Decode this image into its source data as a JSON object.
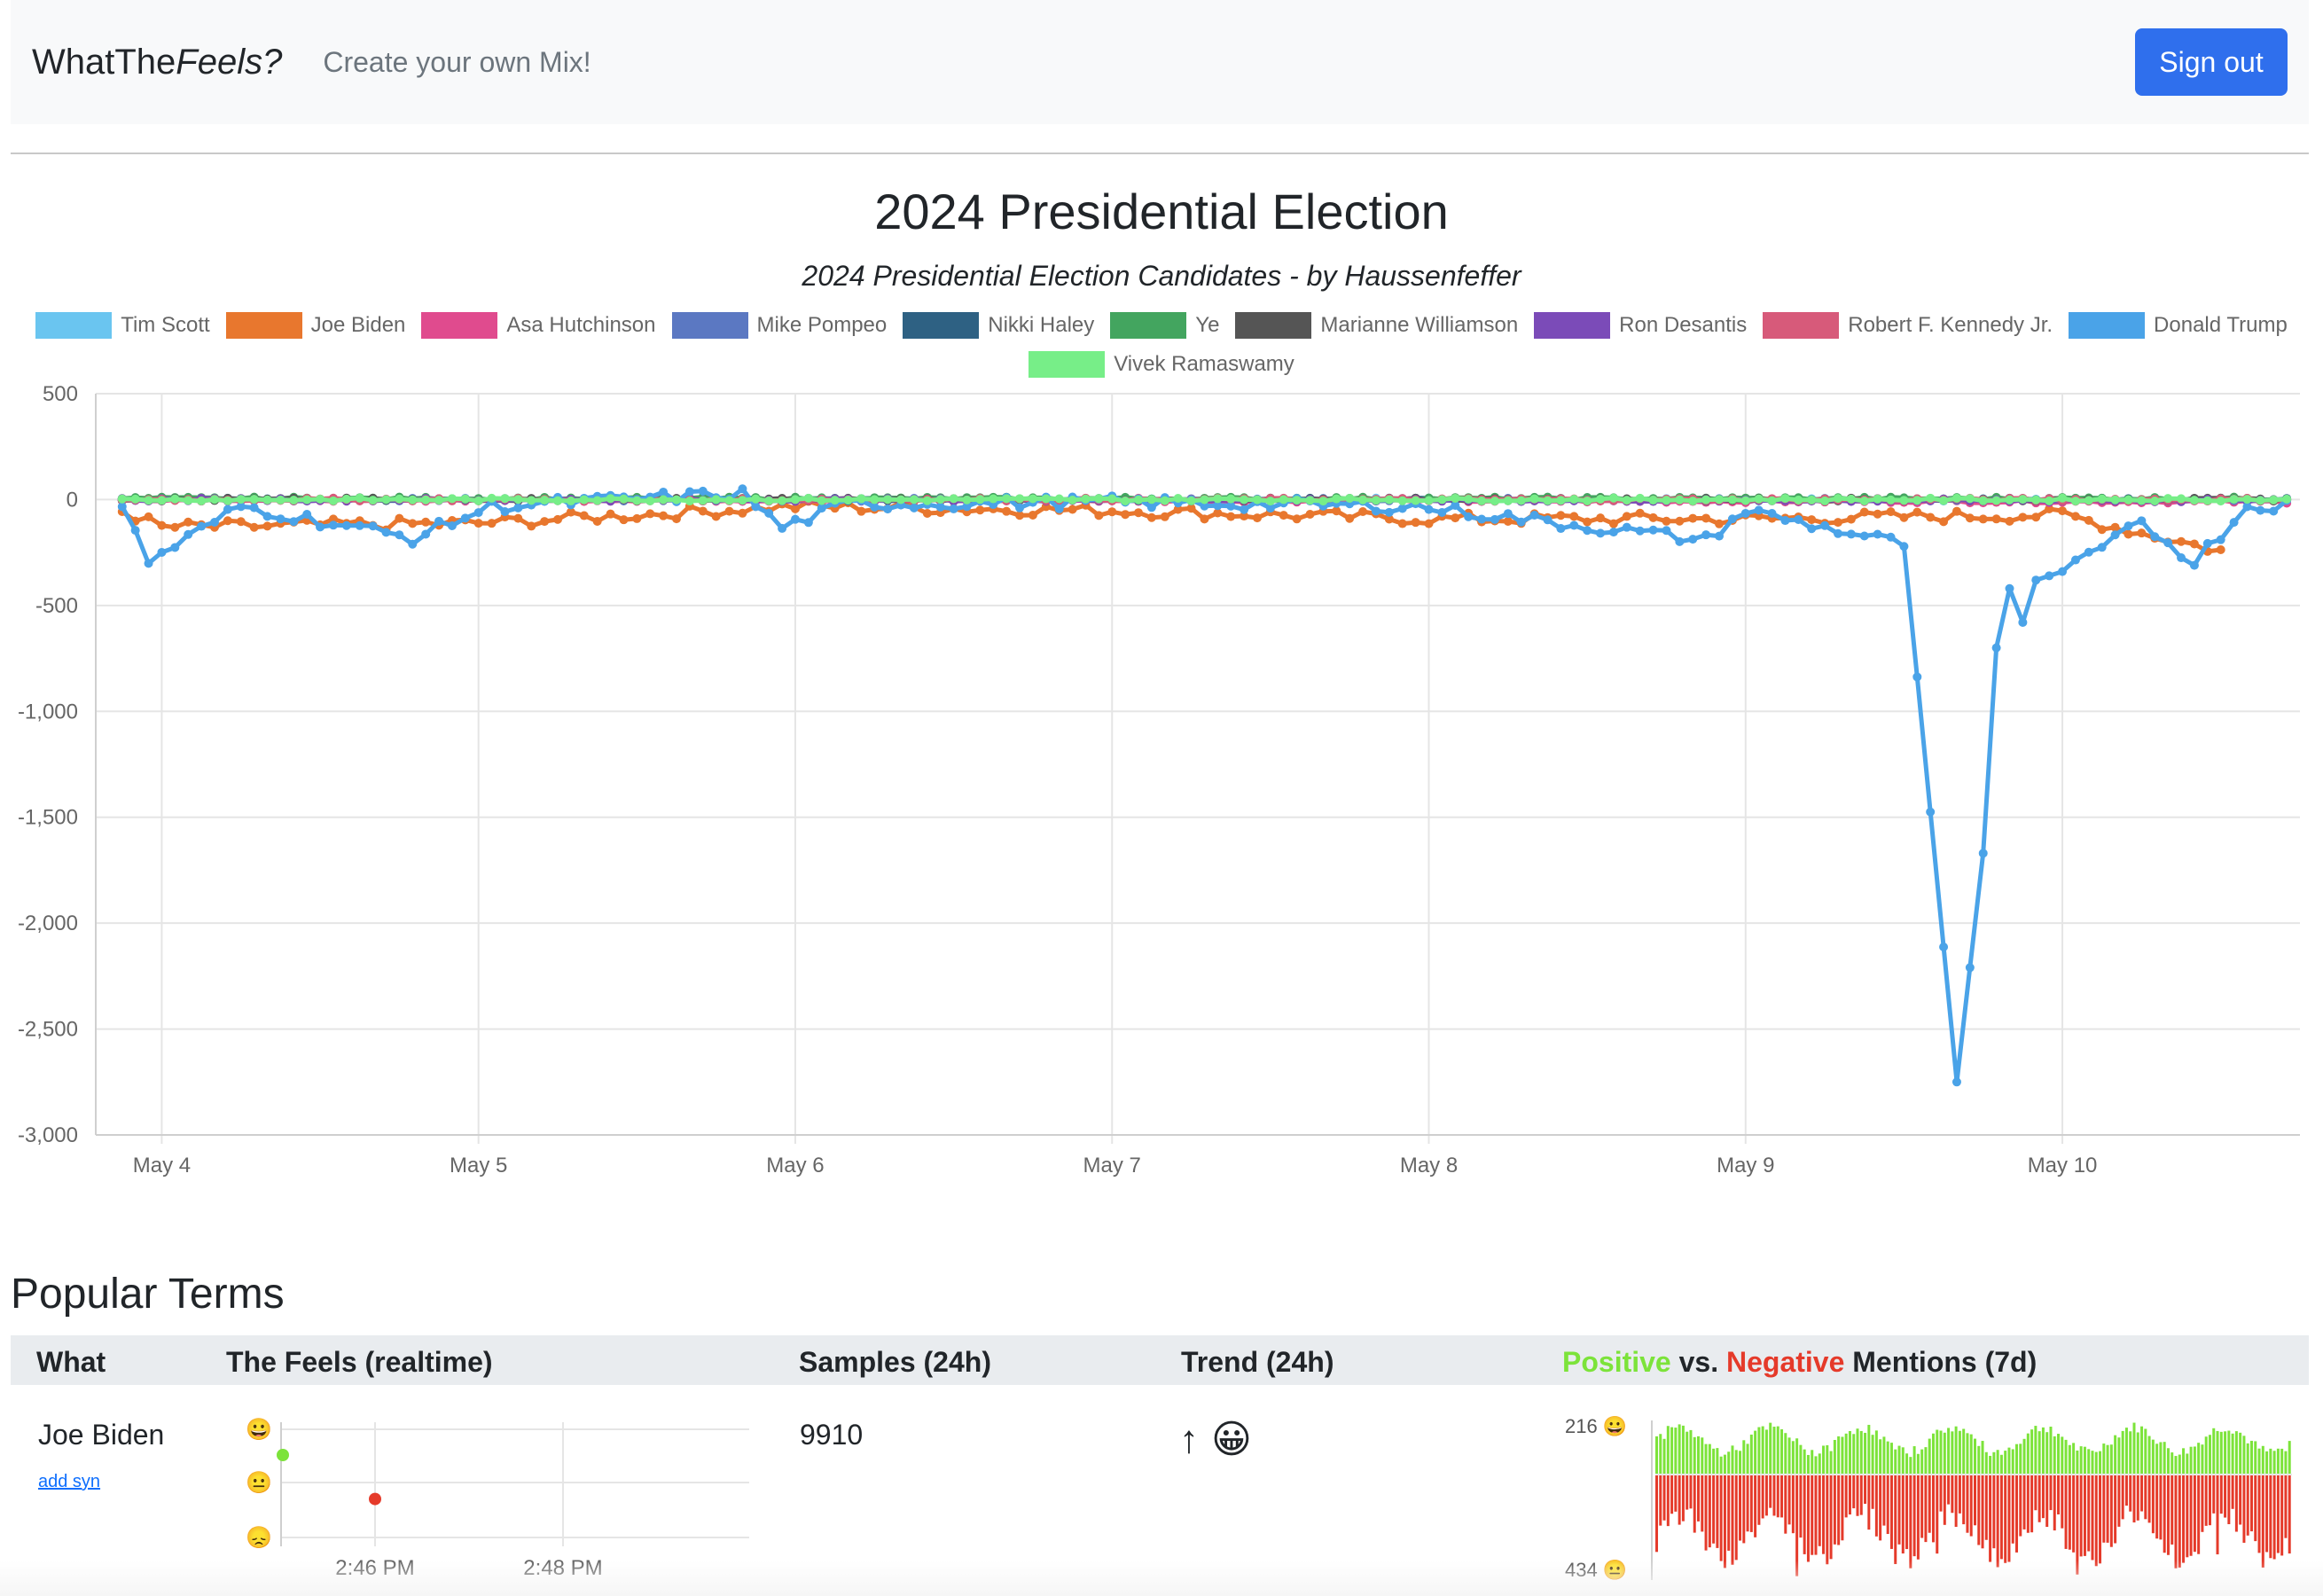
{
  "navbar": {
    "brand_prefix": "WhatThe",
    "brand_italic": "Feels?",
    "nav_link": "Create your own Mix!",
    "signout_label": "Sign out"
  },
  "colors": {
    "accent_button": "#2f6fed",
    "positive": "#7ce33a",
    "negative": "#e53a2a"
  },
  "chart_data": {
    "type": "line",
    "title": "2024 Presidential Election",
    "subtitle": "2024 Presidential Election Candidates - by Haussenfeffer",
    "legend_position": "top",
    "grid": true,
    "ylim": [
      -3000,
      500
    ],
    "yticks": [
      500,
      0,
      -500,
      -1000,
      -1500,
      -2000,
      -2500,
      -3000
    ],
    "ytick_labels": [
      "500",
      "0",
      "-500",
      "-1,000",
      "-1,500",
      "-2,000",
      "-2,500",
      "-3,000"
    ],
    "xlim": [
      "2024-05-03 19:00",
      "2024-05-10 18:00"
    ],
    "xticks": [
      "2024-05-04",
      "2024-05-05",
      "2024-05-06",
      "2024-05-07",
      "2024-05-08",
      "2024-05-09",
      "2024-05-10"
    ],
    "xtick_labels": [
      "May 4",
      "May 5",
      "May 6",
      "May 7",
      "May 8",
      "May 9",
      "May 10"
    ],
    "series": [
      {
        "name": "Tim Scott",
        "color": "#6ac5f0",
        "x": [
          "2024-05-03 21:00",
          "2024-05-06 21:00",
          "2024-05-10 13:00"
        ],
        "values": [
          0,
          0,
          0
        ]
      },
      {
        "name": "Joe Biden",
        "color": "#e8772e",
        "x": [
          "2024-05-03 21:00",
          "2024-05-04 00:00",
          "2024-05-05 00:00",
          "2024-05-06 00:00",
          "2024-05-07 00:00",
          "2024-05-08 00:00",
          "2024-05-09 00:00",
          "2024-05-10 00:00",
          "2024-05-10 12:00"
        ],
        "values": [
          -40,
          -120,
          -100,
          -20,
          -40,
          -80,
          -80,
          -60,
          -230
        ]
      },
      {
        "name": "Asa Hutchinson",
        "color": "#e04b8e",
        "x": [
          "2024-05-03 21:00",
          "2024-05-10 17:00"
        ],
        "values": [
          0,
          -10
        ]
      },
      {
        "name": "Mike Pompeo",
        "color": "#5b78c2",
        "x": [
          "2024-05-03 21:00",
          "2024-05-10 17:00"
        ],
        "values": [
          0,
          0
        ]
      },
      {
        "name": "Nikki Haley",
        "color": "#2e6183",
        "x": [
          "2024-05-03 21:00",
          "2024-05-10 17:00"
        ],
        "values": [
          0,
          0
        ]
      },
      {
        "name": "Ye",
        "color": "#43a55f",
        "x": [
          "2024-05-03 21:00",
          "2024-05-10 17:00"
        ],
        "values": [
          5,
          5
        ]
      },
      {
        "name": "Marianne Williamson",
        "color": "#555555",
        "x": [
          "2024-05-03 21:00",
          "2024-05-10 17:00"
        ],
        "values": [
          0,
          0
        ]
      },
      {
        "name": "Ron Desantis",
        "color": "#7b4bb8",
        "x": [
          "2024-05-03 21:00",
          "2024-05-10 17:00"
        ],
        "values": [
          0,
          -5
        ]
      },
      {
        "name": "Robert F. Kennedy Jr.",
        "color": "#d75a7a",
        "x": [
          "2024-05-03 21:00",
          "2024-05-10 17:00"
        ],
        "values": [
          0,
          0
        ]
      },
      {
        "name": "Donald Trump",
        "color": "#4aa3e8",
        "x": [
          "2024-05-03 21:00",
          "2024-05-03 23:00",
          "2024-05-04 06:00",
          "2024-05-04 19:00",
          "2024-05-05 01:00",
          "2024-05-05 20:00",
          "2024-05-05 23:00",
          "2024-05-06 04:00",
          "2024-05-07 00:00",
          "2024-05-07 23:00",
          "2024-05-08 21:00",
          "2024-05-09 00:00",
          "2024-05-09 12:00",
          "2024-05-09 16:00",
          "2024-05-09 18:00",
          "2024-05-09 19:00",
          "2024-05-09 20:00",
          "2024-05-09 21:00",
          "2024-05-09 22:00",
          "2024-05-10 00:00",
          "2024-05-10 06:00",
          "2024-05-10 10:00",
          "2024-05-10 14:00",
          "2024-05-10 17:00"
        ],
        "values": [
          -20,
          -280,
          -20,
          -170,
          -20,
          40,
          -120,
          -10,
          0,
          -20,
          -180,
          -40,
          -200,
          -2750,
          -1670,
          -700,
          -420,
          -580,
          -380,
          -340,
          -100,
          -280,
          -20,
          -10
        ]
      },
      {
        "name": "Vivek Ramaswamy",
        "color": "#77ee88",
        "x": [
          "2024-05-03 21:00",
          "2024-05-10 17:00"
        ],
        "values": [
          0,
          0
        ]
      }
    ]
  },
  "popular_terms": {
    "title": "Popular Terms",
    "headers": {
      "what": "What",
      "feels": "The Feels (realtime)",
      "samples": "Samples (24h)",
      "trend": "Trend (24h)",
      "mentions_positive": "Positive",
      "mentions_vs": " vs. ",
      "mentions_negative": "Negative",
      "mentions_rest": " Mentions (7d)"
    },
    "rows": [
      {
        "what": "Joe Biden",
        "add_syn": "add syn",
        "samples": "9910",
        "trend_arrow": "↑",
        "trend_emoji": "😀",
        "feels_chart": {
          "type": "scatter",
          "y_emojis": [
            "😀",
            "😐",
            "😞"
          ],
          "xtick_labels": [
            "2:46 PM",
            "2:48 PM"
          ],
          "points": [
            {
              "time": "2:45 PM",
              "value": 0.5,
              "color": "#7ce33a"
            },
            {
              "time": "2:46 PM",
              "value": -0.3,
              "color": "#e53a2a"
            }
          ]
        },
        "mentions_chart": {
          "type": "bar",
          "top_label": "216 😀",
          "bottom_label": "434 😐",
          "positive_max": 216,
          "negative_max": 434,
          "positive_color": "#7ce33a",
          "negative_color": "#e53a2a"
        }
      }
    ]
  }
}
